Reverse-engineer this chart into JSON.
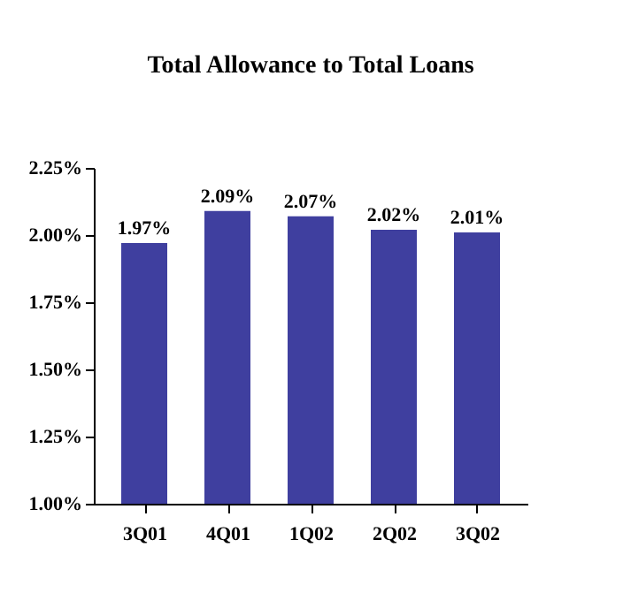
{
  "chart_data": {
    "type": "bar",
    "title": "Total Allowance to Total Loans",
    "categories": [
      "3Q01",
      "4Q01",
      "1Q02",
      "2Q02",
      "3Q02"
    ],
    "values": [
      1.97,
      2.09,
      2.07,
      2.02,
      2.01
    ],
    "value_labels": [
      "1.97%",
      "2.09%",
      "2.07%",
      "2.02%",
      "2.01%"
    ],
    "color": "#3f3f9f",
    "ylim": [
      1.0,
      2.25
    ],
    "yticks": [
      {
        "value": 1.0,
        "label": "1.00%"
      },
      {
        "value": 1.25,
        "label": "1.25%"
      },
      {
        "value": 1.5,
        "label": "1.50%"
      },
      {
        "value": 1.75,
        "label": "1.75%"
      },
      {
        "value": 2.0,
        "label": "2.00%"
      },
      {
        "value": 2.25,
        "label": "2.25%"
      }
    ],
    "grid": false
  }
}
